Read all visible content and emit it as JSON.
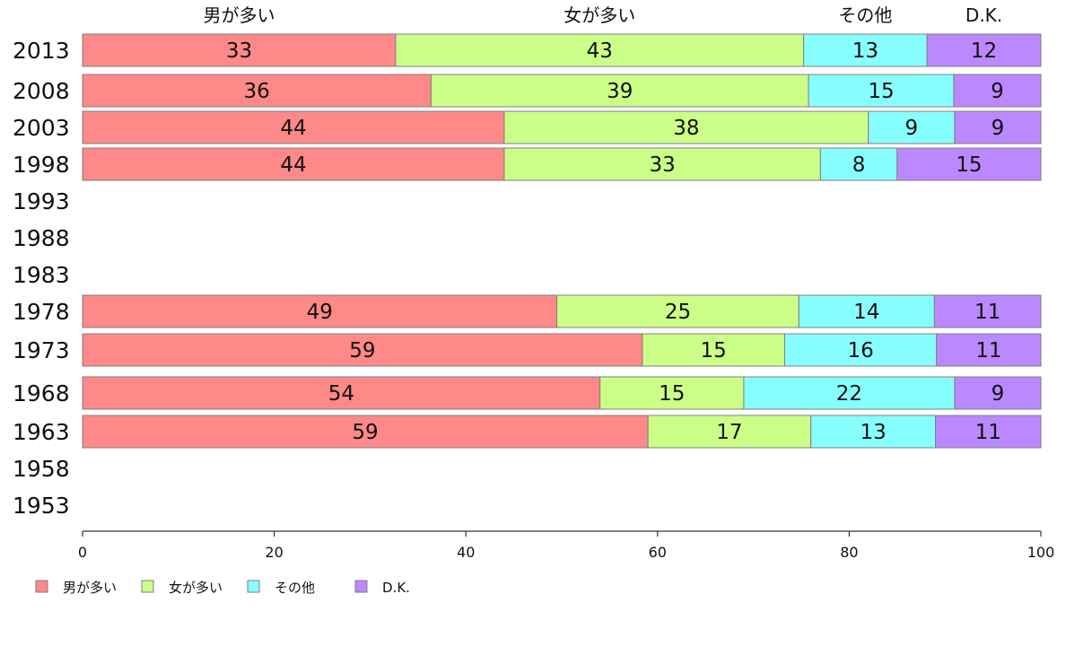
{
  "chart_data": {
    "type": "bar",
    "orientation": "horizontal",
    "stacked": true,
    "categories": [
      "2013",
      "2008",
      "2003",
      "1998",
      "1993",
      "1988",
      "1983",
      "1978",
      "1973",
      "1968",
      "1963",
      "1958",
      "1953"
    ],
    "series": [
      {
        "name": "男が多い",
        "color": "#ff8888",
        "values": [
          33,
          36,
          44,
          44,
          null,
          null,
          null,
          49,
          59,
          54,
          59,
          null,
          null
        ]
      },
      {
        "name": "女が多い",
        "color": "#ccff88",
        "values": [
          43,
          39,
          38,
          33,
          null,
          null,
          null,
          25,
          15,
          15,
          17,
          null,
          null
        ]
      },
      {
        "name": "その他",
        "color": "#88ffff",
        "values": [
          13,
          15,
          9,
          8,
          null,
          null,
          null,
          14,
          16,
          22,
          13,
          null,
          null
        ]
      },
      {
        "name": "D.K.",
        "color": "#bb88ff",
        "values": [
          12,
          9,
          9,
          15,
          null,
          null,
          null,
          11,
          11,
          9,
          11,
          null,
          null
        ]
      }
    ],
    "xlim": [
      0,
      100
    ],
    "xticks": [
      "0",
      "20",
      "40",
      "60",
      "80",
      "100"
    ],
    "grid": false,
    "legend_position": "bottom-left",
    "title": "",
    "xlabel": "",
    "ylabel": ""
  }
}
